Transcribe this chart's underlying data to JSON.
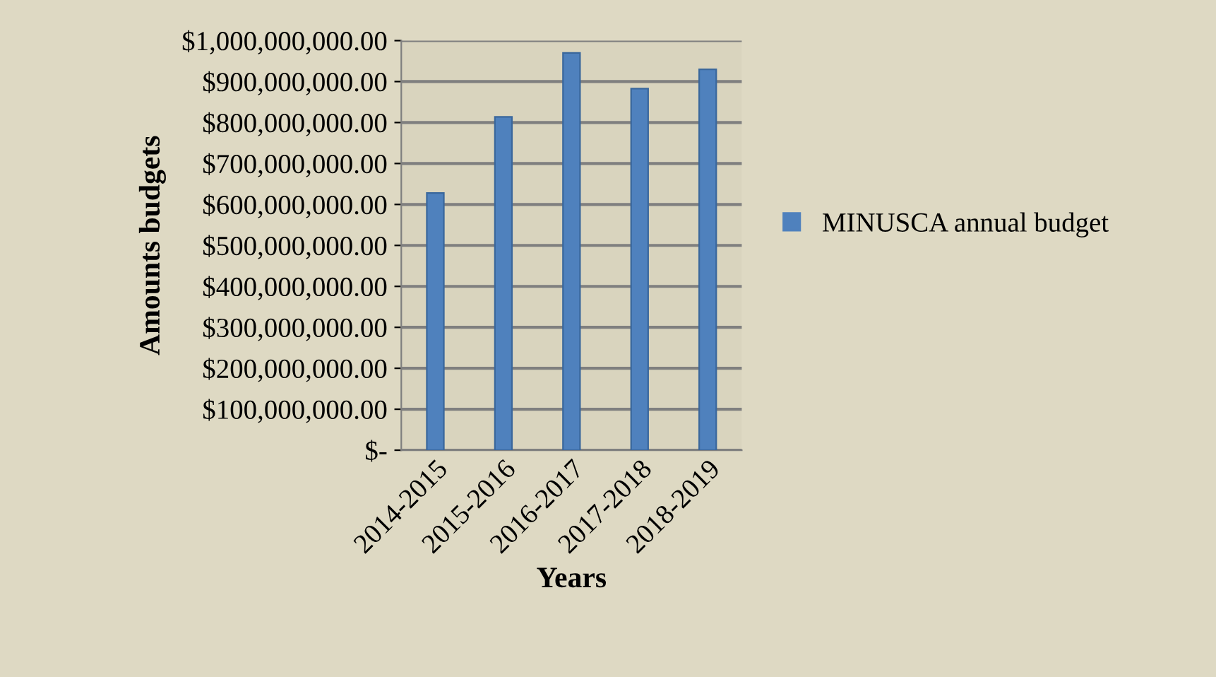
{
  "chart_data": {
    "type": "bar",
    "xlabel": "Years",
    "ylabel": "Amounts budgets",
    "categories": [
      "2014-2015",
      "2015-2016",
      "2016-2017",
      "2017-2018",
      "2018-2019"
    ],
    "series": [
      {
        "name": "MINUSCA annual budget",
        "color": "#4f81bd",
        "values": [
          628000000,
          814000000,
          970000000,
          883000000,
          930000000
        ]
      }
    ],
    "ylim": [
      0,
      1000000000
    ],
    "yticks": [
      {
        "value": 0,
        "label": "$-"
      },
      {
        "value": 100000000,
        "label": "$100,000,000.00"
      },
      {
        "value": 200000000,
        "label": "$200,000,000.00"
      },
      {
        "value": 300000000,
        "label": "$300,000,000.00"
      },
      {
        "value": 400000000,
        "label": "$400,000,000.00"
      },
      {
        "value": 500000000,
        "label": "$500,000,000.00"
      },
      {
        "value": 600000000,
        "label": "$600,000,000.00"
      },
      {
        "value": 700000000,
        "label": "$700,000,000.00"
      },
      {
        "value": 800000000,
        "label": "$800,000,000.00"
      },
      {
        "value": 900000000,
        "label": "$900,000,000.00"
      },
      {
        "value": 1000000000,
        "label": "$1,000,000,000.00"
      }
    ],
    "grid": "y",
    "legend": "right"
  }
}
